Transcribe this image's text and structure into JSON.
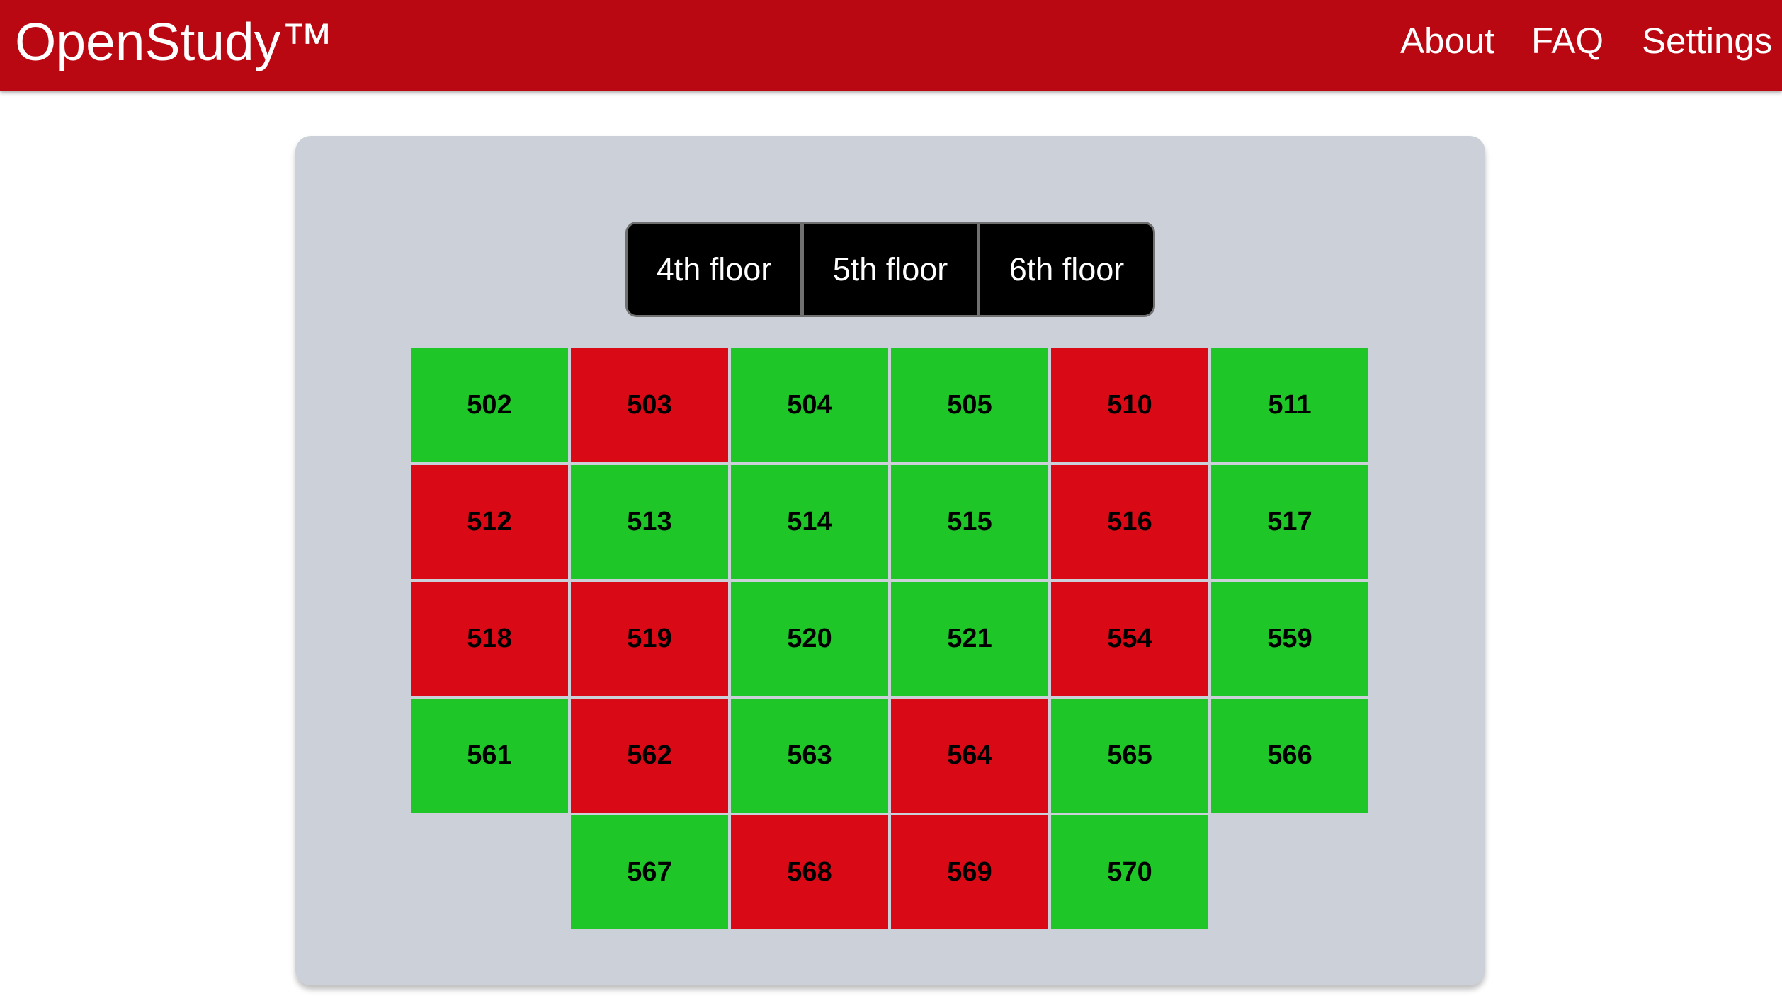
{
  "navbar": {
    "brand": "OpenStudy™",
    "links": [
      "About",
      "FAQ",
      "Settings"
    ]
  },
  "floors": [
    "4th floor",
    "5th floor",
    "6th floor"
  ],
  "colors": {
    "navbar": "#b90811",
    "available": "#1ec627",
    "occupied": "#d90a16",
    "panel": "#ccd0d8"
  },
  "rooms": [
    [
      {
        "label": "502",
        "status": "available"
      },
      {
        "label": "503",
        "status": "occupied"
      },
      {
        "label": "504",
        "status": "available"
      },
      {
        "label": "505",
        "status": "available"
      },
      {
        "label": "510",
        "status": "occupied"
      },
      {
        "label": "511",
        "status": "available"
      }
    ],
    [
      {
        "label": "512",
        "status": "occupied"
      },
      {
        "label": "513",
        "status": "available"
      },
      {
        "label": "514",
        "status": "available"
      },
      {
        "label": "515",
        "status": "available"
      },
      {
        "label": "516",
        "status": "occupied"
      },
      {
        "label": "517",
        "status": "available"
      }
    ],
    [
      {
        "label": "518",
        "status": "occupied"
      },
      {
        "label": "519",
        "status": "occupied"
      },
      {
        "label": "520",
        "status": "available"
      },
      {
        "label": "521",
        "status": "available"
      },
      {
        "label": "554",
        "status": "occupied"
      },
      {
        "label": "559",
        "status": "available"
      }
    ],
    [
      {
        "label": "561",
        "status": "available"
      },
      {
        "label": "562",
        "status": "occupied"
      },
      {
        "label": "563",
        "status": "available"
      },
      {
        "label": "564",
        "status": "occupied"
      },
      {
        "label": "565",
        "status": "available"
      },
      {
        "label": "566",
        "status": "available"
      }
    ],
    [
      null,
      {
        "label": "567",
        "status": "available"
      },
      {
        "label": "568",
        "status": "occupied"
      },
      {
        "label": "569",
        "status": "occupied"
      },
      {
        "label": "570",
        "status": "available"
      },
      null
    ]
  ]
}
